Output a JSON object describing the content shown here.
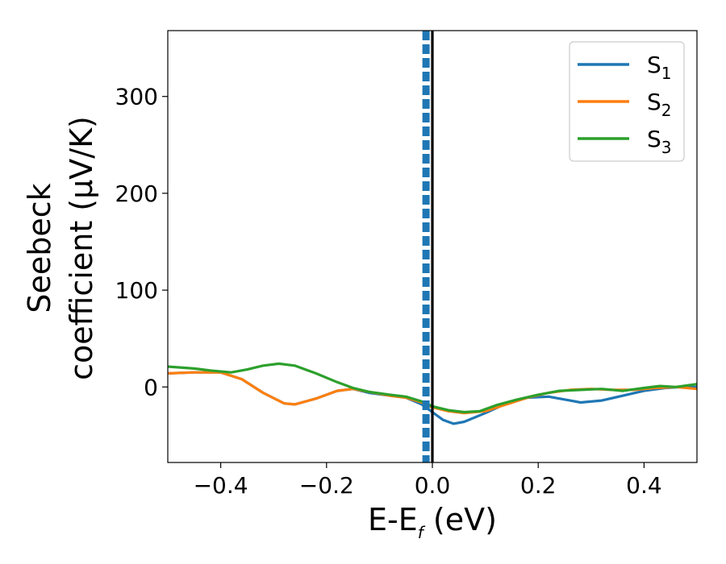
{
  "chart_data": {
    "type": "line",
    "xlabel_main": "E-E",
    "xlabel_sub": "f",
    "xlabel_tail": " (eV)",
    "ylabel_line1": "Seebeck",
    "ylabel_line2": "coefficient  (μV/K)",
    "xlim": [
      -0.5,
      0.5
    ],
    "ylim": [
      -78,
      368
    ],
    "xticks": [
      -0.4,
      -0.2,
      0.0,
      0.2,
      0.4
    ],
    "xtick_labels": [
      "−0.4",
      "−0.2",
      "0.0",
      "0.2",
      "0.4"
    ],
    "yticks": [
      0,
      100,
      200,
      300
    ],
    "ytick_labels": [
      "0",
      "100",
      "200",
      "300"
    ],
    "vlines": [
      {
        "x": 0.0,
        "style": "solid",
        "color": "#000000"
      },
      {
        "x": -0.012,
        "style": "dashed",
        "color": "#1f77b4"
      }
    ],
    "legend": {
      "placement": "top-right",
      "entries": [
        {
          "base": "S",
          "sub": "1",
          "color": "#1f77b4"
        },
        {
          "base": "S",
          "sub": "2",
          "color": "#ff7f0e"
        },
        {
          "base": "S",
          "sub": "3",
          "color": "#2ca02c"
        }
      ]
    },
    "series": [
      {
        "color": "#1f77b4",
        "points": [
          [
            -0.5,
            14
          ],
          [
            -0.45,
            15
          ],
          [
            -0.4,
            15
          ],
          [
            -0.36,
            8
          ],
          [
            -0.32,
            -6
          ],
          [
            -0.28,
            -17
          ],
          [
            -0.26,
            -18
          ],
          [
            -0.22,
            -12
          ],
          [
            -0.18,
            -4
          ],
          [
            -0.15,
            -2
          ],
          [
            -0.12,
            -6
          ],
          [
            -0.08,
            -9
          ],
          [
            -0.05,
            -11
          ],
          [
            -0.02,
            -18
          ],
          [
            0.0,
            -26
          ],
          [
            0.02,
            -34
          ],
          [
            0.04,
            -38
          ],
          [
            0.06,
            -36
          ],
          [
            0.1,
            -27
          ],
          [
            0.14,
            -17
          ],
          [
            0.18,
            -11
          ],
          [
            0.22,
            -10
          ],
          [
            0.26,
            -14
          ],
          [
            0.28,
            -16
          ],
          [
            0.32,
            -14
          ],
          [
            0.36,
            -9
          ],
          [
            0.4,
            -4
          ],
          [
            0.44,
            -1
          ],
          [
            0.47,
            0
          ],
          [
            0.5,
            0
          ]
        ]
      },
      {
        "color": "#ff7f0e",
        "points": [
          [
            -0.5,
            14
          ],
          [
            -0.45,
            15
          ],
          [
            -0.4,
            15
          ],
          [
            -0.36,
            8
          ],
          [
            -0.32,
            -6
          ],
          [
            -0.28,
            -17
          ],
          [
            -0.26,
            -18
          ],
          [
            -0.22,
            -12
          ],
          [
            -0.18,
            -4
          ],
          [
            -0.15,
            -2
          ],
          [
            -0.12,
            -5
          ],
          [
            -0.08,
            -9
          ],
          [
            -0.05,
            -11
          ],
          [
            -0.02,
            -16
          ],
          [
            0.0,
            -21
          ],
          [
            0.03,
            -25
          ],
          [
            0.06,
            -27
          ],
          [
            0.1,
            -25
          ],
          [
            0.14,
            -18
          ],
          [
            0.18,
            -11
          ],
          [
            0.22,
            -6
          ],
          [
            0.26,
            -3
          ],
          [
            0.3,
            -2
          ],
          [
            0.34,
            -3
          ],
          [
            0.38,
            -3
          ],
          [
            0.42,
            -1
          ],
          [
            0.46,
            0
          ],
          [
            0.5,
            -2
          ]
        ]
      },
      {
        "color": "#2ca02c",
        "points": [
          [
            -0.5,
            21
          ],
          [
            -0.45,
            19
          ],
          [
            -0.42,
            17
          ],
          [
            -0.38,
            15
          ],
          [
            -0.35,
            18
          ],
          [
            -0.32,
            22
          ],
          [
            -0.29,
            24
          ],
          [
            -0.26,
            22
          ],
          [
            -0.22,
            14
          ],
          [
            -0.18,
            5
          ],
          [
            -0.15,
            -1
          ],
          [
            -0.12,
            -5
          ],
          [
            -0.08,
            -8
          ],
          [
            -0.05,
            -10
          ],
          [
            -0.02,
            -15
          ],
          [
            0.0,
            -20
          ],
          [
            0.03,
            -24
          ],
          [
            0.06,
            -26
          ],
          [
            0.09,
            -25
          ],
          [
            0.12,
            -19
          ],
          [
            0.16,
            -13
          ],
          [
            0.2,
            -8
          ],
          [
            0.24,
            -4
          ],
          [
            0.28,
            -3
          ],
          [
            0.32,
            -2
          ],
          [
            0.36,
            -4
          ],
          [
            0.4,
            -1
          ],
          [
            0.43,
            1
          ],
          [
            0.46,
            0
          ],
          [
            0.5,
            3
          ]
        ]
      }
    ],
    "grid": false
  }
}
